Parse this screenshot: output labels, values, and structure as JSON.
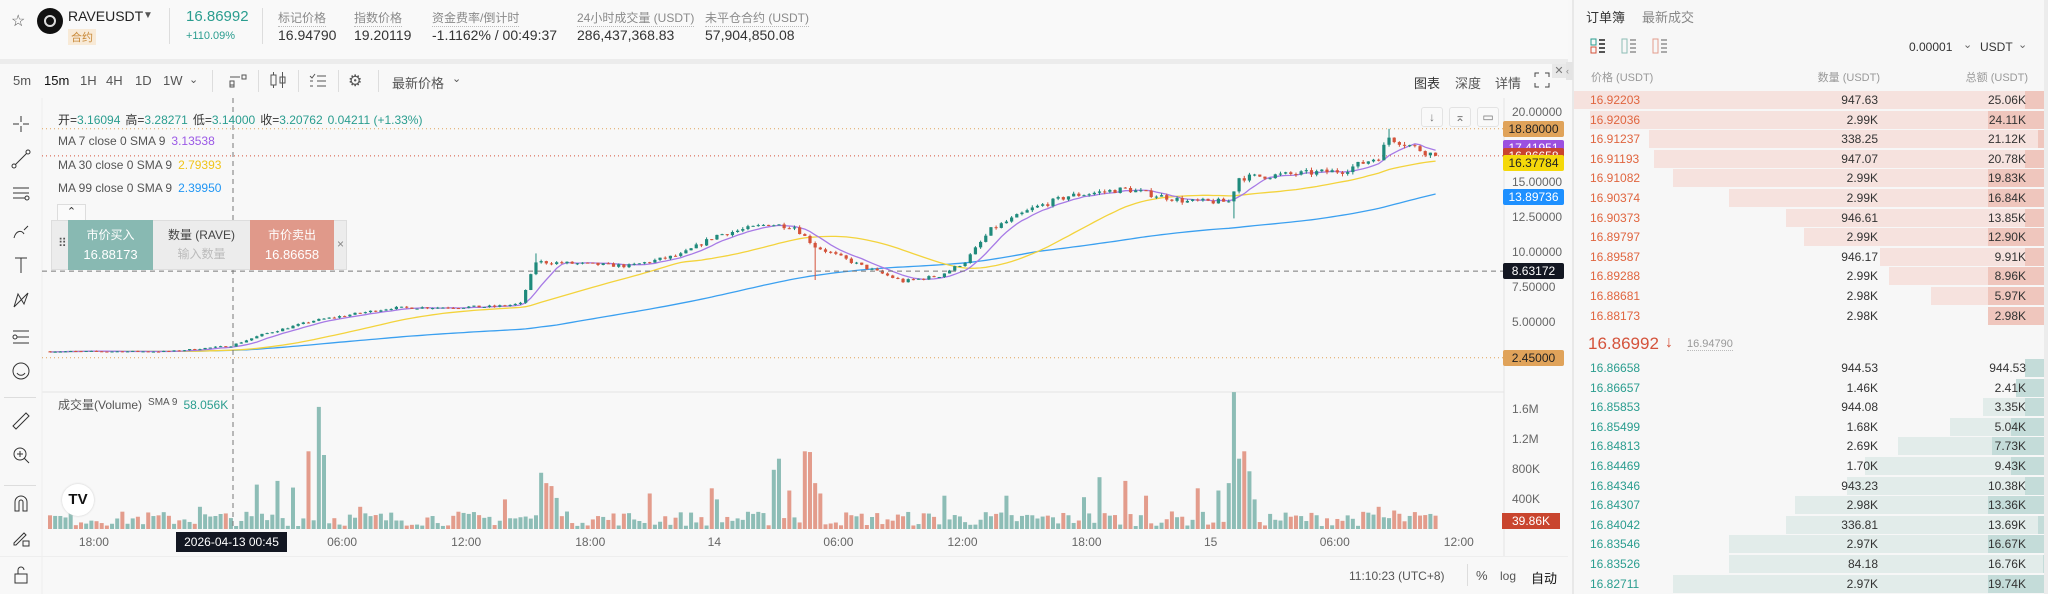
{
  "header": {
    "symbol": "RAVEUSDT",
    "contract_badge": "合约",
    "last_price": "16.86992",
    "change_pct": "+110.09%",
    "stats": [
      {
        "label": "标记价格",
        "value": "16.94790"
      },
      {
        "label": "指数价格",
        "value": "19.20119"
      },
      {
        "label": "资金费率/倒计时",
        "value": "-1.1162% / 00:49:37"
      },
      {
        "label": "24小时成交量 (USDT)",
        "value": "286,437,368.83"
      },
      {
        "label": "未平仓合约 (USDT)",
        "value": "57,904,850.08"
      }
    ]
  },
  "toolbar": {
    "intervals": [
      "5m",
      "15m",
      "1H",
      "4H",
      "1D",
      "1W"
    ],
    "active_interval": "15m",
    "price_type": "最新价格",
    "views": [
      "图表",
      "深度",
      "详情"
    ]
  },
  "legend": {
    "ohlc": [
      {
        "k": "开=",
        "v": "3.16094"
      },
      {
        "k": "高=",
        "v": "3.28271"
      },
      {
        "k": "低=",
        "v": "3.14000"
      },
      {
        "k": "收=",
        "v": "3.20762"
      }
    ],
    "change": "0.04211 (+1.33%)",
    "ma": [
      {
        "label": "MA 7 close 0 SMA 9",
        "value": "3.13538",
        "color": "#9b59e6"
      },
      {
        "label": "MA 30 close 0 SMA 9",
        "value": "2.79393",
        "color": "#f0c419"
      },
      {
        "label": "MA 99 close 0 SMA 9",
        "value": "2.39950",
        "color": "#2196f3"
      }
    ],
    "volume_label": "成交量(Volume)",
    "volume_sma": "SMA 9",
    "volume_value": "58.056K"
  },
  "trade_widget": {
    "buy_label": "市价买入",
    "buy_price": "16.88173",
    "qty_label": "数量 (RAVE)",
    "qty_placeholder": "输入数量",
    "sell_label": "市价卖出",
    "sell_price": "16.86658"
  },
  "price_labels": [
    {
      "value": "18.80000",
      "price": 18.8,
      "color": "#e0a35a",
      "text": "#222"
    },
    {
      "value": "17.41951",
      "price": 17.41951,
      "color": "#9b50e0",
      "text": "#fff"
    },
    {
      "value": "16.86658",
      "price": 16.86658,
      "color": "#c9452e",
      "text": "#fff"
    },
    {
      "value": "16.37784",
      "price": 16.37784,
      "color": "#f5d90a",
      "text": "#222"
    },
    {
      "value": "13.89736",
      "price": 13.89736,
      "color": "#1e90ff",
      "text": "#fff"
    },
    {
      "value": "8.63172",
      "price": 8.63172,
      "color": "#131722",
      "text": "#fff"
    },
    {
      "value": "2.45000",
      "price": 2.45,
      "color": "#e0a35a",
      "text": "#222"
    }
  ],
  "crosshair_time": "2026-04-13   00:45",
  "volume_last": "39.86K",
  "footer": {
    "clock": "11:10:23 (UTC+8)",
    "percent": "%",
    "log": "log",
    "auto": "自动"
  },
  "colors": {
    "up": "#1f8a7c",
    "down": "#d4533b",
    "vol_up": "#8dbdb6",
    "vol_down": "#e39c8c"
  },
  "chart_data": {
    "type": "candlestick",
    "ylim": [
      0,
      20
    ],
    "y_ticks": [
      "20.00000",
      "15.00000",
      "12.50000",
      "10.00000",
      "7.50000",
      "5.00000"
    ],
    "y_tick_values": [
      20,
      15,
      12.5,
      10,
      7.5,
      5
    ],
    "x_ticks": [
      {
        "label": "18:00",
        "h": 0
      },
      {
        "label": "06:00",
        "h": 12
      },
      {
        "label": "12:00",
        "h": 18
      },
      {
        "label": "18:00",
        "h": 24
      },
      {
        "label": "14",
        "h": 30
      },
      {
        "label": "06:00",
        "h": 36
      },
      {
        "label": "12:00",
        "h": 42
      },
      {
        "label": "18:00",
        "h": 48
      },
      {
        "label": "15",
        "h": 54
      },
      {
        "label": "06:00",
        "h": 60
      },
      {
        "label": "12:00",
        "h": 66
      }
    ],
    "candle_interval": "15m",
    "price_path": [
      [
        0,
        2.9
      ],
      [
        23,
        2.9
      ],
      [
        35,
        3.3
      ],
      [
        41,
        4.1
      ],
      [
        51,
        5.1
      ],
      [
        66,
        6.0
      ],
      [
        86,
        6.1
      ],
      [
        91,
        6.3
      ],
      [
        94,
        9.3
      ],
      [
        112,
        9.0
      ],
      [
        122,
        9.8
      ],
      [
        129,
        11.2
      ],
      [
        139,
        12.0
      ],
      [
        144,
        11.8
      ],
      [
        148,
        10.4
      ],
      [
        157,
        9.0
      ],
      [
        165,
        7.9
      ],
      [
        172,
        8.3
      ],
      [
        177,
        9.3
      ],
      [
        182,
        11.6
      ],
      [
        190,
        13.1
      ],
      [
        197,
        14.0
      ],
      [
        208,
        14.5
      ],
      [
        220,
        13.6
      ],
      [
        228,
        13.6
      ],
      [
        230,
        15.3
      ],
      [
        250,
        15.8
      ],
      [
        257,
        16.8
      ],
      [
        259,
        18.2
      ],
      [
        263,
        17.6
      ],
      [
        268,
        16.87
      ]
    ],
    "volume_peaks": [
      [
        44,
        650000
      ],
      [
        47,
        560000
      ],
      [
        50,
        1050000
      ],
      [
        52,
        1650000
      ],
      [
        53,
        1000000
      ],
      [
        40,
        600000
      ],
      [
        29,
        300000
      ],
      [
        60,
        300000
      ],
      [
        88,
        400000
      ],
      [
        95,
        760000
      ],
      [
        96,
        620000
      ],
      [
        97,
        580000
      ],
      [
        98,
        420000
      ],
      [
        116,
        480000
      ],
      [
        128,
        550000
      ],
      [
        129,
        400000
      ],
      [
        140,
        800000
      ],
      [
        141,
        950000
      ],
      [
        143,
        520000
      ],
      [
        146,
        1050000
      ],
      [
        147,
        1040000
      ],
      [
        148,
        620000
      ],
      [
        149,
        480000
      ],
      [
        173,
        450000
      ],
      [
        185,
        450000
      ],
      [
        200,
        430000
      ],
      [
        203,
        700000
      ],
      [
        208,
        650000
      ],
      [
        212,
        450000
      ],
      [
        222,
        550000
      ],
      [
        226,
        520000
      ],
      [
        228,
        620000
      ],
      [
        229,
        1850000
      ],
      [
        230,
        950000
      ],
      [
        231,
        1050000
      ],
      [
        232,
        780000
      ],
      [
        233,
        400000
      ],
      [
        257,
        300000
      ],
      [
        260,
        250000
      ]
    ]
  },
  "orderbook": {
    "tabs": [
      "订单簿",
      "最新成交"
    ],
    "tick_size": "0.00001",
    "unit": "USDT",
    "columns": [
      "价格 (USDT)",
      "数量 (USDT)",
      "总额 (USDT)"
    ],
    "asks": [
      {
        "price": "16.92203",
        "qty": "947.63",
        "total": "25.06K",
        "depth": 1.0,
        "fill": 0.04
      },
      {
        "price": "16.92036",
        "qty": "2.99K",
        "total": "24.11K",
        "depth": 0.965,
        "fill": 0.12
      },
      {
        "price": "16.91237",
        "qty": "338.25",
        "total": "21.12K",
        "depth": 0.84,
        "fill": 0.013
      },
      {
        "price": "16.91193",
        "qty": "947.07",
        "total": "20.78K",
        "depth": 0.83,
        "fill": 0.04
      },
      {
        "price": "16.91082",
        "qty": "2.99K",
        "total": "19.83K",
        "depth": 0.79,
        "fill": 0.12
      },
      {
        "price": "16.90374",
        "qty": "2.99K",
        "total": "16.84K",
        "depth": 0.67,
        "fill": 0.12
      },
      {
        "price": "16.90373",
        "qty": "946.61",
        "total": "13.85K",
        "depth": 0.55,
        "fill": 0.04
      },
      {
        "price": "16.89797",
        "qty": "2.99K",
        "total": "12.90K",
        "depth": 0.51,
        "fill": 0.12
      },
      {
        "price": "16.89587",
        "qty": "946.17",
        "total": "9.91K",
        "depth": 0.35,
        "fill": 0.04
      },
      {
        "price": "16.89288",
        "qty": "2.99K",
        "total": "8.96K",
        "depth": 0.33,
        "fill": 0.12
      },
      {
        "price": "16.88681",
        "qty": "2.98K",
        "total": "5.97K",
        "depth": 0.24,
        "fill": 0.12
      },
      {
        "price": "16.88173",
        "qty": "2.98K",
        "total": "2.98K",
        "depth": 0.12,
        "fill": 0.12
      }
    ],
    "mid_price": "16.86992",
    "mid_arrow": "↓",
    "mark_price": "16.94790",
    "bids": [
      {
        "price": "16.86658",
        "qty": "944.53",
        "total": "944.53",
        "depth": 0.04,
        "fill": 0.04
      },
      {
        "price": "16.86657",
        "qty": "1.46K",
        "total": "2.41K",
        "depth": 0.06,
        "fill": 0.06
      },
      {
        "price": "16.85853",
        "qty": "944.08",
        "total": "3.35K",
        "depth": 0.13,
        "fill": 0.04
      },
      {
        "price": "16.85499",
        "qty": "1.68K",
        "total": "5.04K",
        "depth": 0.2,
        "fill": 0.07
      },
      {
        "price": "16.84813",
        "qty": "2.69K",
        "total": "7.73K",
        "depth": 0.31,
        "fill": 0.11
      },
      {
        "price": "16.84469",
        "qty": "1.70K",
        "total": "9.43K",
        "depth": 0.38,
        "fill": 0.07
      },
      {
        "price": "16.84346",
        "qty": "943.23",
        "total": "10.38K",
        "depth": 0.42,
        "fill": 0.04
      },
      {
        "price": "16.84307",
        "qty": "2.98K",
        "total": "13.36K",
        "depth": 0.53,
        "fill": 0.12
      },
      {
        "price": "16.84042",
        "qty": "336.81",
        "total": "13.69K",
        "depth": 0.55,
        "fill": 0.013
      },
      {
        "price": "16.83546",
        "qty": "2.97K",
        "total": "16.67K",
        "depth": 0.67,
        "fill": 0.12
      },
      {
        "price": "16.83526",
        "qty": "84.18",
        "total": "16.76K",
        "depth": 0.67,
        "fill": 0.003
      },
      {
        "price": "16.82711",
        "qty": "2.97K",
        "total": "19.74K",
        "depth": 0.79,
        "fill": 0.12
      }
    ]
  }
}
